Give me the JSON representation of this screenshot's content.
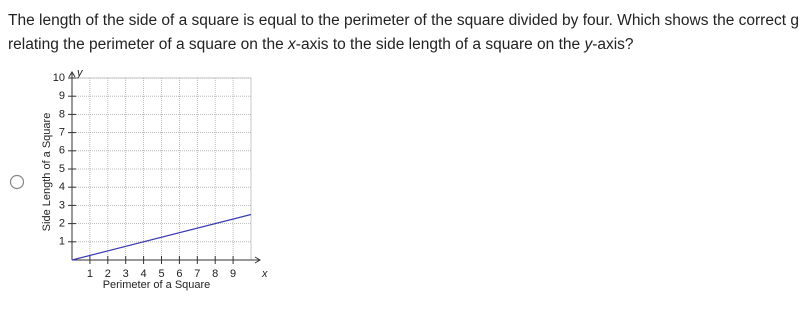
{
  "question": {
    "line1": "The length of the side of a square is equal to the perimeter of the square divided by four. Which shows the correct graph",
    "line2": [
      "relating the perimeter of a square on the ",
      "x",
      "-axis to the side length of a square on the ",
      "y",
      "-axis?"
    ]
  },
  "chart_data": {
    "type": "line",
    "x_label": "Perimeter of a Square",
    "y_label": "Side Length of a Square",
    "x_axis_name": "x",
    "y_axis_name": "y",
    "x": [
      0,
      10
    ],
    "series": [
      {
        "color": "#3b3bb3",
        "values": [
          0,
          2.5
        ]
      }
    ],
    "xlim": [
      0,
      10
    ],
    "ylim": [
      0,
      10
    ],
    "xticks": [
      1,
      2,
      3,
      4,
      5,
      6,
      7,
      8,
      9
    ],
    "yticks": [
      1,
      2,
      3,
      4,
      5,
      6,
      7,
      8,
      9,
      10
    ],
    "grid": true
  }
}
